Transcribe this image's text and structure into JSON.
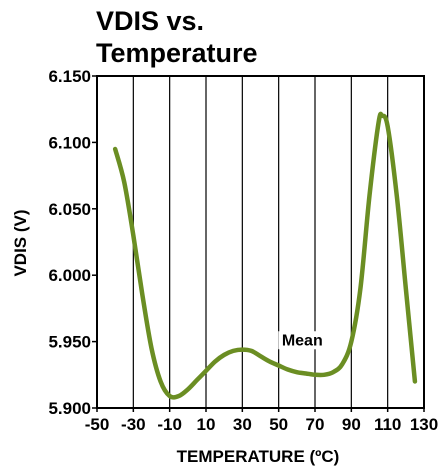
{
  "chart_data": {
    "type": "line",
    "title": "VDIS vs. Temperature",
    "title_lines": [
      "VDIS vs.",
      "Temperature"
    ],
    "xlabel": "TEMPERATURE (ºC)",
    "ylabel": "VDIS (V)",
    "xlim": [
      -50,
      130
    ],
    "ylim": [
      5.9,
      6.15
    ],
    "x_ticks": [
      -50,
      -30,
      -10,
      10,
      30,
      50,
      70,
      90,
      110,
      130
    ],
    "y_ticks": [
      5.9,
      5.95,
      6.0,
      6.05,
      6.1,
      6.15
    ],
    "x_tick_labels": [
      "-50",
      "-30",
      "-10",
      "10",
      "30",
      "50",
      "70",
      "90",
      "110",
      "130"
    ],
    "y_tick_labels": [
      "5.900",
      "5.950",
      "6.000",
      "6.050",
      "6.100",
      "6.150"
    ],
    "grid": "vertical",
    "line_color": "#6b8e23",
    "series": [
      {
        "x": [
          -40,
          -35,
          -30,
          -25,
          -20,
          -15,
          -10,
          -5,
          0,
          5,
          10,
          15,
          20,
          25,
          30,
          35,
          40,
          45,
          50,
          55,
          60,
          65,
          70,
          75,
          80,
          85,
          90,
          95,
          100,
          105,
          107,
          110,
          115,
          120,
          125
        ],
        "y": [
          6.095,
          6.07,
          6.03,
          5.985,
          5.945,
          5.92,
          5.909,
          5.909,
          5.914,
          5.921,
          5.928,
          5.935,
          5.94,
          5.943,
          5.944,
          5.943,
          5.939,
          5.935,
          5.932,
          5.929,
          5.927,
          5.926,
          5.925,
          5.925,
          5.927,
          5.933,
          5.95,
          5.99,
          6.06,
          6.115,
          6.12,
          6.112,
          6.06,
          5.99,
          5.92
        ]
      }
    ],
    "annotations": [
      {
        "text": "Mean",
        "x": 63,
        "y": 5.948
      }
    ]
  }
}
